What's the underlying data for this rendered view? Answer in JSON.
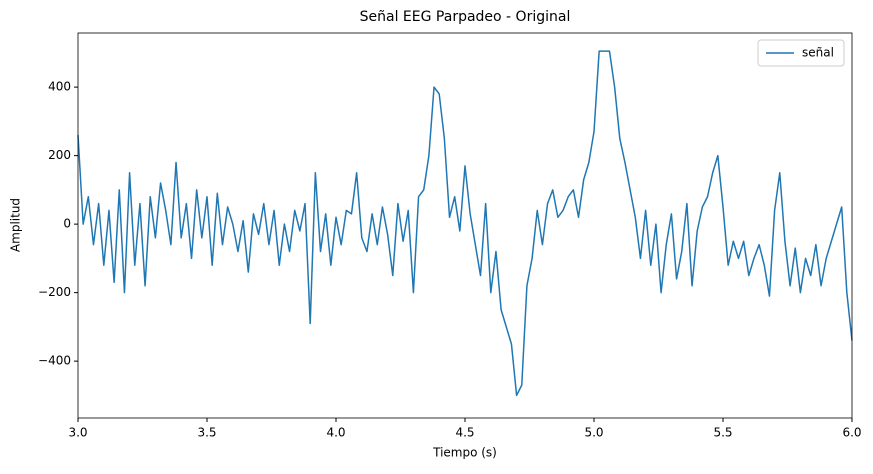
{
  "chart_data": {
    "type": "line",
    "title": "Señal EEG Parpadeo - Original",
    "x_label": "Tiempo (s)",
    "y_label": "Amplitud",
    "x": [
      3,
      3.02,
      3.04,
      3.06,
      3.08,
      3.1,
      3.12,
      3.14,
      3.16,
      3.18,
      3.2,
      3.22,
      3.24,
      3.26,
      3.28,
      3.3,
      3.32,
      3.34,
      3.36,
      3.38,
      3.4,
      3.42,
      3.44,
      3.46,
      3.48,
      3.5,
      3.52,
      3.54,
      3.56,
      3.58,
      3.6,
      3.62,
      3.64,
      3.66,
      3.68,
      3.7,
      3.72,
      3.74,
      3.76,
      3.78,
      3.8,
      3.82,
      3.84,
      3.86,
      3.88,
      3.9,
      3.92,
      3.94,
      3.96,
      3.98,
      4,
      4.02,
      4.04,
      4.06,
      4.08,
      4.1,
      4.12,
      4.14,
      4.16,
      4.18,
      4.2,
      4.22,
      4.24,
      4.26,
      4.28,
      4.3,
      4.32,
      4.34,
      4.36,
      4.38,
      4.4,
      4.42,
      4.44,
      4.46,
      4.48,
      4.5,
      4.52,
      4.54,
      4.56,
      4.58,
      4.6,
      4.62,
      4.64,
      4.66,
      4.68,
      4.7,
      4.72,
      4.74,
      4.76,
      4.78,
      4.8,
      4.82,
      4.84,
      4.86,
      4.88,
      4.9,
      4.92,
      4.94,
      4.96,
      4.98,
      5,
      5.02,
      5.04,
      5.06,
      5.08,
      5.1,
      5.12,
      5.14,
      5.16,
      5.18,
      5.2,
      5.22,
      5.24,
      5.26,
      5.28,
      5.3,
      5.32,
      5.34,
      5.36,
      5.38,
      5.4,
      5.42,
      5.44,
      5.46,
      5.48,
      5.5,
      5.52,
      5.54,
      5.56,
      5.58,
      5.6,
      5.62,
      5.64,
      5.66,
      5.68,
      5.7,
      5.72,
      5.74,
      5.76,
      5.78,
      5.8,
      5.82,
      5.84,
      5.86,
      5.88,
      5.9,
      5.92,
      5.94,
      5.96,
      5.98,
      6
    ],
    "series": [
      {
        "name": "señal",
        "color": "#1f77b4",
        "values": [
          260,
          0,
          80,
          -60,
          60,
          -120,
          40,
          -170,
          100,
          -200,
          150,
          -120,
          60,
          -180,
          80,
          -40,
          120,
          40,
          -60,
          180,
          -40,
          60,
          -100,
          100,
          -40,
          80,
          -120,
          90,
          -60,
          50,
          0,
          -80,
          10,
          -140,
          30,
          -30,
          60,
          -60,
          40,
          -120,
          0,
          -80,
          40,
          -20,
          60,
          -290,
          150,
          -80,
          30,
          -120,
          20,
          -60,
          40,
          30,
          150,
          -40,
          -80,
          30,
          -60,
          50,
          -30,
          -150,
          60,
          -50,
          40,
          -200,
          80,
          100,
          200,
          400,
          380,
          250,
          20,
          80,
          -20,
          170,
          30,
          -60,
          -150,
          60,
          -200,
          -80,
          -250,
          -300,
          -350,
          -500,
          -470,
          -180,
          -100,
          40,
          -60,
          60,
          100,
          20,
          40,
          80,
          100,
          20,
          130,
          180,
          270,
          505,
          505,
          505,
          400,
          250,
          180,
          100,
          20,
          -100,
          40,
          -120,
          0,
          -200,
          -60,
          30,
          -160,
          -80,
          60,
          -180,
          -20,
          50,
          80,
          150,
          200,
          50,
          -120,
          -50,
          -100,
          -50,
          -150,
          -100,
          -60,
          -120,
          -210,
          40,
          150,
          -50,
          -180,
          -70,
          -200,
          -100,
          -150,
          -60,
          -180,
          -100,
          -50,
          0,
          50,
          -200,
          -340
        ]
      }
    ],
    "xlim": [
      3,
      6
    ],
    "xticks": [
      {
        "value": 3,
        "label": "3.0"
      },
      3.5,
      {
        "value": 4,
        "label": "4.0"
      },
      4.5,
      {
        "value": 5,
        "label": "5.0"
      },
      5.5,
      {
        "value": 6,
        "label": "6.0"
      }
    ],
    "ylim": [
      -566,
      558
    ],
    "yticks": [
      {
        "value": -400,
        "label": "−400"
      },
      {
        "value": -200,
        "label": "−200"
      },
      0,
      200,
      400
    ],
    "grid": false,
    "legend": "upper right"
  }
}
